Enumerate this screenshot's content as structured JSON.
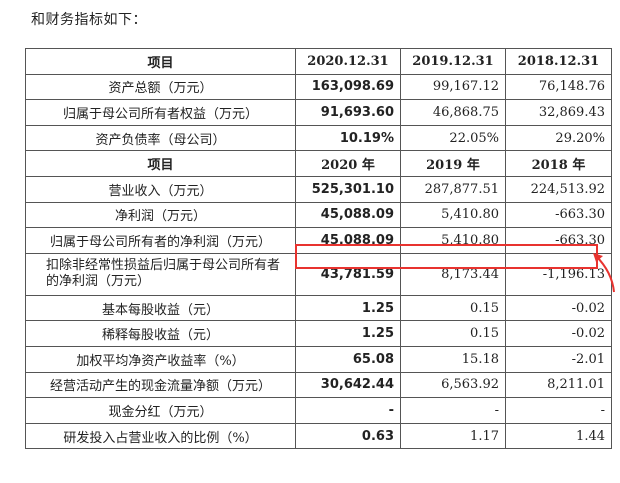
{
  "intro_text": "和财务指标如下：",
  "sections": [
    {
      "header": [
        "项目",
        "2020.12.31",
        "2019.12.31",
        "2018.12.31"
      ],
      "rows": [
        {
          "label": "资产总额（万元）",
          "values": [
            "163,098.69",
            "99,167.12",
            "76,148.76"
          ]
        },
        {
          "label": "归属于母公司所有者权益（万元）",
          "values": [
            "91,693.60",
            "46,868.75",
            "32,869.43"
          ]
        },
        {
          "label": "资产负债率（母公司）",
          "values": [
            "10.19%",
            "22.05%",
            "29.20%"
          ]
        }
      ]
    },
    {
      "header": [
        "项目",
        "2020 年",
        "2019 年",
        "2018 年"
      ],
      "rows": [
        {
          "label": "营业收入（万元）",
          "values": [
            "525,301.10",
            "287,877.51",
            "224,513.92"
          ]
        },
        {
          "label": "净利润（万元）",
          "values": [
            "45,088.09",
            "5,410.80",
            "-663.30"
          ]
        },
        {
          "label": "归属于母公司所有者的净利润（万元）",
          "values": [
            "45,088.09",
            "5,410.80",
            "-663.30"
          ]
        },
        {
          "label": "扣除非经常性损益后归属于母公司所有者的净利润（万元）",
          "values": [
            "43,781.59",
            "8,173.44",
            "-1,196.13"
          ]
        },
        {
          "label": "基本每股收益（元）",
          "values": [
            "1.25",
            "0.15",
            "-0.02"
          ]
        },
        {
          "label": "稀释每股收益（元）",
          "values": [
            "1.25",
            "0.15",
            "-0.02"
          ]
        },
        {
          "label": "加权平均净资产收益率（%）",
          "values": [
            "65.08",
            "15.18",
            "-2.01"
          ]
        },
        {
          "label": "经营活动产生的现金流量净额（万元）",
          "values": [
            "30,642.44",
            "6,563.92",
            "8,211.01"
          ]
        },
        {
          "label": "现金分红（万元）",
          "values": [
            "-",
            "-",
            "-"
          ]
        },
        {
          "label": "研发投入占营业收入的比例（%）",
          "values": [
            "0.63",
            "1.17",
            "1.44"
          ]
        }
      ]
    }
  ],
  "highlight_color": "#e8332f"
}
